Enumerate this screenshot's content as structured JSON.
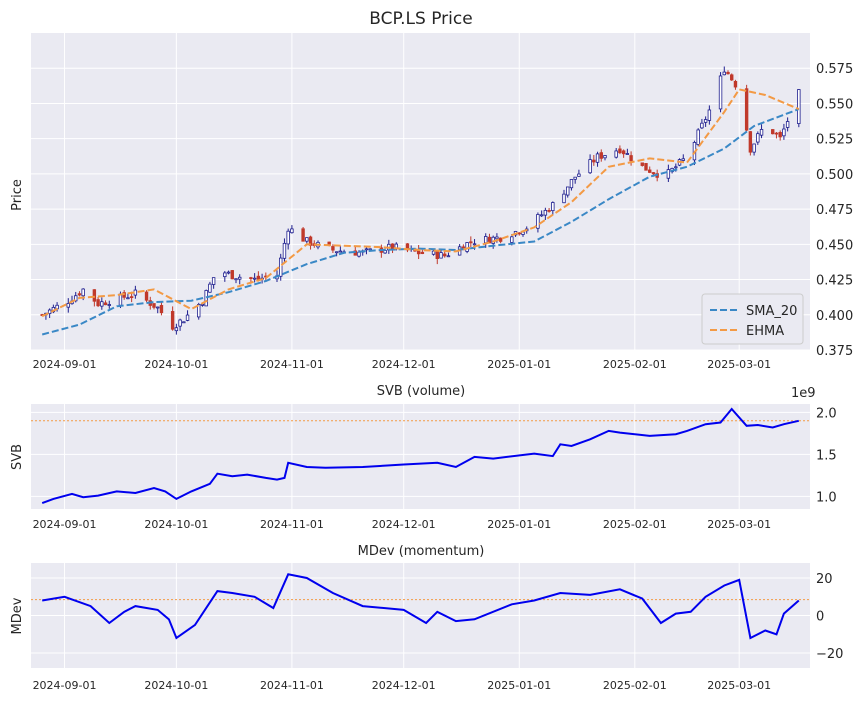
{
  "chart_data": [
    {
      "type": "candlestick",
      "title": "BCP.LS Price",
      "ylabel": "Price",
      "xlabel": "",
      "ylim": [
        0.375,
        0.6
      ],
      "x_ticks": [
        "2024-09-01",
        "2024-10-01",
        "2024-11-01",
        "2024-12-01",
        "2025-01-01",
        "2025-02-01",
        "2025-03-01"
      ],
      "y_ticks": [
        0.375,
        0.4,
        0.425,
        0.45,
        0.475,
        0.5,
        0.525,
        0.55,
        0.575
      ],
      "y_tick_labels": [
        "0.375",
        "0.400",
        "0.425",
        "0.450",
        "0.475",
        "0.500",
        "0.525",
        "0.550",
        "0.575"
      ],
      "date_range": [
        "2024-08-26",
        "2025-03-17"
      ],
      "legend": {
        "placement": "bottom-right",
        "entries": [
          "SMA_20",
          "EHMA"
        ]
      },
      "close_anchors": [
        [
          "2024-08-26",
          0.4
        ],
        [
          "2024-09-02",
          0.41
        ],
        [
          "2024-09-06",
          0.418
        ],
        [
          "2024-09-10",
          0.408
        ],
        [
          "2024-09-16",
          0.412
        ],
        [
          "2024-09-20",
          0.415
        ],
        [
          "2024-09-26",
          0.405
        ],
        [
          "2024-09-30",
          0.392
        ],
        [
          "2024-10-03",
          0.397
        ],
        [
          "2024-10-08",
          0.41
        ],
        [
          "2024-10-12",
          0.432
        ],
        [
          "2024-10-16",
          0.428
        ],
        [
          "2024-10-22",
          0.425
        ],
        [
          "2024-10-28",
          0.428
        ],
        [
          "2024-10-31",
          0.462
        ],
        [
          "2024-11-05",
          0.452
        ],
        [
          "2024-11-12",
          0.446
        ],
        [
          "2024-11-20",
          0.444
        ],
        [
          "2024-11-28",
          0.448
        ],
        [
          "2024-12-05",
          0.444
        ],
        [
          "2024-12-12",
          0.442
        ],
        [
          "2024-12-19",
          0.452
        ],
        [
          "2024-12-27",
          0.455
        ],
        [
          "2025-01-03",
          0.462
        ],
        [
          "2025-01-10",
          0.478
        ],
        [
          "2025-01-16",
          0.498
        ],
        [
          "2025-01-22",
          0.512
        ],
        [
          "2025-01-28",
          0.518
        ],
        [
          "2025-02-03",
          0.505
        ],
        [
          "2025-02-09",
          0.498
        ],
        [
          "2025-02-15",
          0.512
        ],
        [
          "2025-02-21",
          0.545
        ],
        [
          "2025-02-25",
          0.575
        ],
        [
          "2025-03-01",
          0.56
        ],
        [
          "2025-03-04",
          0.518
        ],
        [
          "2025-03-08",
          0.535
        ],
        [
          "2025-03-12",
          0.525
        ],
        [
          "2025-03-17",
          0.557
        ]
      ],
      "series": [
        {
          "name": "SMA_20",
          "style": "dashed",
          "color": "#3a88c6",
          "x": [
            "2024-08-26",
            "2024-09-05",
            "2024-09-15",
            "2024-09-25",
            "2024-10-05",
            "2024-10-15",
            "2024-10-25",
            "2024-11-05",
            "2024-11-15",
            "2024-11-25",
            "2024-12-05",
            "2024-12-15",
            "2024-12-25",
            "2025-01-05",
            "2025-01-15",
            "2025-01-25",
            "2025-02-05",
            "2025-02-15",
            "2025-02-25",
            "2025-03-05",
            "2025-03-17"
          ],
          "y": [
            0.386,
            0.393,
            0.406,
            0.409,
            0.41,
            0.416,
            0.424,
            0.436,
            0.444,
            0.446,
            0.447,
            0.446,
            0.449,
            0.452,
            0.466,
            0.482,
            0.498,
            0.505,
            0.518,
            0.534,
            0.546
          ]
        },
        {
          "name": "EHMA",
          "style": "dashed",
          "color": "#f39a45",
          "x": [
            "2024-08-26",
            "2024-09-05",
            "2024-09-15",
            "2024-09-25",
            "2024-10-05",
            "2024-10-15",
            "2024-10-25",
            "2024-11-05",
            "2024-11-15",
            "2024-11-25",
            "2024-12-05",
            "2024-12-15",
            "2024-12-25",
            "2025-01-05",
            "2025-01-15",
            "2025-01-25",
            "2025-02-05",
            "2025-02-15",
            "2025-02-25",
            "2025-03-01",
            "2025-03-08",
            "2025-03-17"
          ],
          "y": [
            0.399,
            0.412,
            0.414,
            0.418,
            0.404,
            0.418,
            0.426,
            0.45,
            0.449,
            0.448,
            0.446,
            0.445,
            0.452,
            0.462,
            0.48,
            0.505,
            0.511,
            0.508,
            0.544,
            0.56,
            0.556,
            0.546
          ]
        }
      ]
    },
    {
      "type": "line",
      "title": "SVB (volume)",
      "ylabel": "SVB",
      "offset_label": "1e9",
      "ylim": [
        0.85,
        2.1
      ],
      "y_ticks": [
        1.0,
        1.5,
        2.0
      ],
      "y_tick_labels": [
        "1.0",
        "1.5",
        "2.0"
      ],
      "x_ticks": [
        "2024-09-01",
        "2024-10-01",
        "2024-11-01",
        "2024-12-01",
        "2025-01-01",
        "2025-02-01",
        "2025-03-01"
      ],
      "reference_line": 1.9,
      "series": [
        {
          "name": "SVB",
          "color": "#0000ee",
          "x": [
            "2024-08-26",
            "2024-08-29",
            "2024-09-03",
            "2024-09-06",
            "2024-09-10",
            "2024-09-15",
            "2024-09-20",
            "2024-09-25",
            "2024-09-28",
            "2024-10-01",
            "2024-10-05",
            "2024-10-10",
            "2024-10-12",
            "2024-10-16",
            "2024-10-20",
            "2024-10-25",
            "2024-10-28",
            "2024-10-30",
            "2024-10-31",
            "2024-11-05",
            "2024-11-10",
            "2024-11-20",
            "2024-12-01",
            "2024-12-10",
            "2024-12-15",
            "2024-12-20",
            "2024-12-25",
            "2025-01-05",
            "2025-01-10",
            "2025-01-12",
            "2025-01-15",
            "2025-01-20",
            "2025-01-25",
            "2025-01-28",
            "2025-02-05",
            "2025-02-12",
            "2025-02-15",
            "2025-02-20",
            "2025-02-24",
            "2025-02-27",
            "2025-03-03",
            "2025-03-06",
            "2025-03-10",
            "2025-03-13",
            "2025-03-17"
          ],
          "y": [
            0.92,
            0.97,
            1.03,
            0.99,
            1.01,
            1.06,
            1.04,
            1.1,
            1.06,
            0.97,
            1.06,
            1.15,
            1.27,
            1.24,
            1.26,
            1.22,
            1.2,
            1.22,
            1.4,
            1.35,
            1.34,
            1.35,
            1.38,
            1.4,
            1.35,
            1.47,
            1.45,
            1.51,
            1.48,
            1.62,
            1.6,
            1.68,
            1.78,
            1.76,
            1.72,
            1.74,
            1.78,
            1.86,
            1.88,
            2.04,
            1.84,
            1.85,
            1.82,
            1.86,
            1.9
          ]
        }
      ]
    },
    {
      "type": "line",
      "title": "MDev (momentum)",
      "ylabel": "MDev",
      "ylim": [
        -28,
        28
      ],
      "y_ticks": [
        -20,
        0,
        20
      ],
      "y_tick_labels": [
        "−20",
        "0",
        "20"
      ],
      "x_ticks": [
        "2024-09-01",
        "2024-10-01",
        "2024-11-01",
        "2024-12-01",
        "2025-01-01",
        "2025-02-01",
        "2025-03-01"
      ],
      "reference_line": 8.5,
      "series": [
        {
          "name": "MDev",
          "color": "#0000ee",
          "x": [
            "2024-08-26",
            "2024-09-01",
            "2024-09-08",
            "2024-09-13",
            "2024-09-17",
            "2024-09-20",
            "2024-09-26",
            "2024-09-29",
            "2024-10-01",
            "2024-10-06",
            "2024-10-12",
            "2024-10-16",
            "2024-10-22",
            "2024-10-27",
            "2024-10-31",
            "2024-11-05",
            "2024-11-12",
            "2024-11-20",
            "2024-12-01",
            "2024-12-07",
            "2024-12-10",
            "2024-12-15",
            "2024-12-20",
            "2024-12-30",
            "2025-01-05",
            "2025-01-12",
            "2025-01-20",
            "2025-01-28",
            "2025-02-03",
            "2025-02-08",
            "2025-02-12",
            "2025-02-16",
            "2025-02-20",
            "2025-02-25",
            "2025-03-01",
            "2025-03-04",
            "2025-03-08",
            "2025-03-11",
            "2025-03-13",
            "2025-03-17"
          ],
          "y": [
            8,
            10,
            5,
            -4,
            2,
            5,
            3,
            -2,
            -12,
            -5,
            13,
            12,
            10,
            4,
            22,
            20,
            12,
            5,
            3,
            -4,
            2,
            -3,
            -2,
            6,
            8,
            12,
            11,
            14,
            9,
            -4,
            1,
            2,
            10,
            16,
            19,
            -12,
            -8,
            -10,
            1,
            8
          ]
        }
      ]
    }
  ],
  "colors": {
    "axes_bg": "#eaeaf2",
    "candle_up": "#1f1f8f",
    "candle_down": "#c0392b",
    "sma": "#3a88c6",
    "ehma": "#f39a45",
    "svb_line": "#0000ee",
    "mdev_line": "#0000ee",
    "reference_line": "#f39a45"
  }
}
